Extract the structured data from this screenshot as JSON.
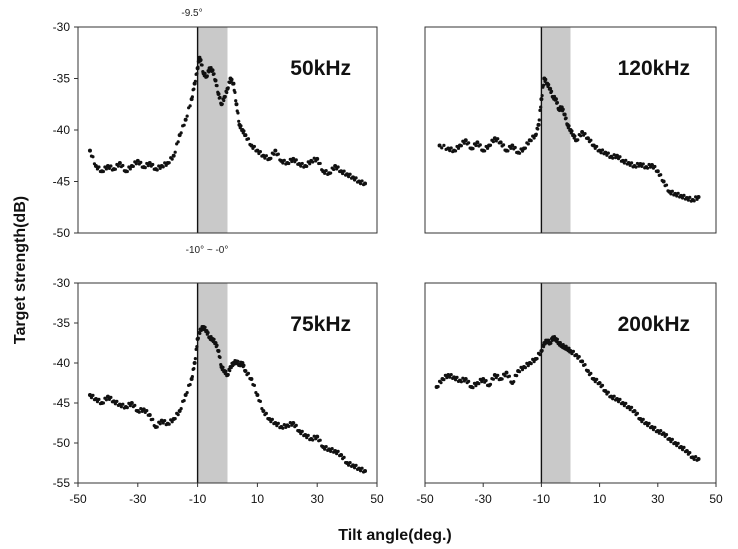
{
  "figure": {
    "ylabel": "Target strength(dB)",
    "xlabel": "Tilt angle(deg.)",
    "annotation_top": "-9.5°",
    "annotation_bottom": "-10° ~ -0°",
    "shade_range": [
      -10,
      0
    ],
    "marker_line_x": -10
  },
  "chart_data": [
    {
      "type": "scatter",
      "label": "50kHz",
      "xlim": [
        -50,
        50
      ],
      "ylim": [
        -50,
        -30
      ],
      "yticks": [
        "-30",
        "-35",
        "-40",
        "-45",
        "-50"
      ],
      "xticks": [],
      "x": [
        -46,
        -44,
        -42,
        -40,
        -38,
        -36,
        -34,
        -32,
        -30,
        -28,
        -26,
        -24,
        -22,
        -20,
        -18,
        -16,
        -14,
        -12,
        -11,
        -10,
        -9.5,
        -9,
        -8,
        -7,
        -6,
        -5,
        -4,
        -3,
        -2,
        -1,
        0,
        1,
        2,
        3,
        4,
        5,
        6,
        8,
        10,
        12,
        14,
        16,
        18,
        20,
        22,
        24,
        26,
        28,
        30,
        32,
        34,
        36,
        38,
        40,
        42,
        44,
        46
      ],
      "y": [
        -42,
        -43.5,
        -44,
        -43.5,
        -43.8,
        -43.2,
        -44,
        -43.5,
        -43,
        -43.6,
        -43.2,
        -43.8,
        -43.5,
        -43.2,
        -42.5,
        -40.5,
        -39,
        -37,
        -35.5,
        -34,
        -33,
        -33.2,
        -34.5,
        -34.8,
        -34,
        -34.2,
        -35.2,
        -36.5,
        -37.5,
        -36.8,
        -36,
        -35,
        -35.5,
        -37.5,
        -39.5,
        -40,
        -40.5,
        -41.5,
        -42,
        -42.5,
        -42.8,
        -42,
        -43,
        -43.2,
        -42.8,
        -43.3,
        -43.5,
        -43,
        -42.8,
        -44,
        -44.2,
        -43.5,
        -44,
        -44.3,
        -44.6,
        -45,
        -45.2
      ]
    },
    {
      "type": "scatter",
      "label": "120kHz",
      "xlim": [
        -50,
        50
      ],
      "ylim": [
        -50,
        -30
      ],
      "yticks": [],
      "xticks": [],
      "x": [
        -45,
        -42,
        -40,
        -38,
        -36,
        -34,
        -32,
        -30,
        -28,
        -26,
        -24,
        -22,
        -20,
        -18,
        -16,
        -14,
        -12,
        -11,
        -10,
        -9,
        -8,
        -7,
        -6,
        -5,
        -4,
        -3,
        -2,
        -1,
        0,
        1,
        2,
        4,
        6,
        8,
        10,
        12,
        14,
        16,
        18,
        20,
        22,
        24,
        26,
        28,
        30,
        32,
        34,
        36,
        38,
        40,
        42,
        44
      ],
      "y": [
        -41.5,
        -41.8,
        -42,
        -41.5,
        -41,
        -41.8,
        -41.2,
        -42,
        -41.5,
        -40.8,
        -41.2,
        -42,
        -41.5,
        -42.2,
        -41.8,
        -41,
        -40.5,
        -39.5,
        -37,
        -35,
        -35.5,
        -36,
        -36.8,
        -37,
        -38,
        -37.8,
        -38.5,
        -39.5,
        -40,
        -40.5,
        -41,
        -40.2,
        -40.8,
        -41.5,
        -42,
        -42.2,
        -42.6,
        -42.5,
        -43,
        -43.2,
        -43.5,
        -43.3,
        -43.6,
        -43.4,
        -44,
        -45,
        -46,
        -46.2,
        -46.4,
        -46.6,
        -46.8,
        -46.5
      ]
    },
    {
      "type": "scatter",
      "label": "75kHz",
      "xlim": [
        -50,
        50
      ],
      "ylim": [
        -55,
        -30
      ],
      "yticks": [
        "-30",
        "-35",
        "-40",
        "-45",
        "-50",
        "-55"
      ],
      "xticks": [
        "-50",
        "-30",
        "-10",
        "10",
        "30",
        "50"
      ],
      "x": [
        -46,
        -44,
        -42,
        -40,
        -38,
        -36,
        -34,
        -32,
        -30,
        -28,
        -26,
        -24,
        -22,
        -20,
        -18,
        -16,
        -14,
        -12,
        -11,
        -10,
        -9,
        -8,
        -7,
        -6,
        -5,
        -4,
        -3,
        -2,
        -1,
        0,
        1,
        2,
        3,
        4,
        5,
        6,
        8,
        10,
        12,
        14,
        16,
        18,
        20,
        22,
        24,
        26,
        28,
        30,
        32,
        34,
        36,
        38,
        40,
        42,
        44,
        46
      ],
      "y": [
        -44,
        -44.5,
        -45,
        -44.2,
        -44.8,
        -45.2,
        -45.5,
        -45,
        -46,
        -45.8,
        -46.5,
        -48,
        -47.2,
        -47.6,
        -47,
        -46,
        -44,
        -42,
        -40,
        -37,
        -35.8,
        -35.5,
        -36,
        -36.8,
        -37,
        -37.5,
        -38.5,
        -40.5,
        -41,
        -41.5,
        -40.5,
        -40,
        -39.8,
        -40.2,
        -40,
        -41,
        -42,
        -44,
        -46,
        -47,
        -47.5,
        -48,
        -47.8,
        -47.5,
        -48.5,
        -49,
        -49.5,
        -49.2,
        -50.5,
        -50.8,
        -51,
        -51.5,
        -52.5,
        -52.8,
        -53.2,
        -53.5
      ]
    },
    {
      "type": "scatter",
      "label": "200kHz",
      "xlim": [
        -50,
        50
      ],
      "ylim": [
        -55,
        -30
      ],
      "yticks": [],
      "xticks": [
        "-50",
        "-30",
        "-10",
        "10",
        "30",
        "50"
      ],
      "x": [
        -46,
        -44,
        -42,
        -40,
        -38,
        -36,
        -34,
        -32,
        -30,
        -28,
        -26,
        -24,
        -22,
        -20,
        -18,
        -16,
        -14,
        -12,
        -10,
        -9,
        -8,
        -7,
        -6,
        -5,
        -4,
        -3,
        -2,
        -1,
        0,
        2,
        4,
        6,
        8,
        10,
        12,
        14,
        16,
        18,
        20,
        22,
        24,
        26,
        28,
        30,
        32,
        34,
        36,
        38,
        40,
        42,
        44
      ],
      "y": [
        -43,
        -42,
        -41.5,
        -41.8,
        -42.2,
        -42,
        -43,
        -42.5,
        -42,
        -42.8,
        -41.5,
        -42,
        -41.2,
        -42.5,
        -41,
        -40.5,
        -40,
        -39.5,
        -38.5,
        -37.5,
        -37.2,
        -37.5,
        -36.8,
        -37,
        -37.5,
        -37.8,
        -38,
        -38.2,
        -38.5,
        -39,
        -39.8,
        -41,
        -42,
        -42.5,
        -43.5,
        -44.2,
        -44.5,
        -45,
        -45.5,
        -46,
        -47,
        -47.5,
        -48,
        -48.5,
        -48.8,
        -49.5,
        -50,
        -50.5,
        -51,
        -51.8,
        -52
      ]
    }
  ]
}
